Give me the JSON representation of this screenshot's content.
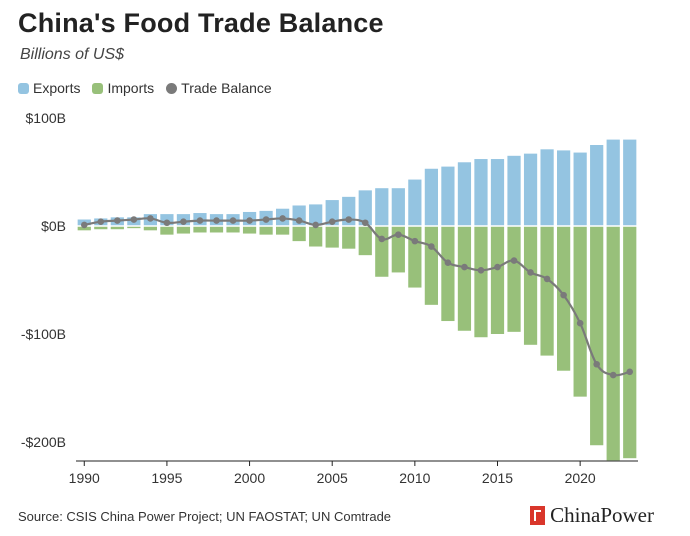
{
  "header": {
    "title": "China's Food Trade Balance",
    "subtitle": "Billions of US$"
  },
  "legend": [
    {
      "label": "Exports",
      "color": "#94c4e1"
    },
    {
      "label": "Imports",
      "color": "#98c07a"
    },
    {
      "label": "Trade Balance",
      "color": "#7a7a7a"
    }
  ],
  "footer": {
    "source": "Source: CSIS China Power Project; UN FAOSTAT; UN Comtrade",
    "brand": "ChinaPower",
    "brand_icon": "chinapower-logo-icon"
  },
  "chart_data": {
    "type": "bar",
    "title": "China's Food Trade Balance",
    "subtitle": "Billions of US$",
    "xlabel": "",
    "ylabel": "",
    "ylim": [
      -220,
      100
    ],
    "yticks": [
      100,
      0,
      -100,
      -200
    ],
    "ytick_labels": [
      "$100B",
      "$0B",
      "-$100B",
      "-$200B"
    ],
    "xticks": [
      1990,
      1995,
      2000,
      2005,
      2010,
      2015,
      2020
    ],
    "grid": false,
    "legend_position": "top-left",
    "x": [
      1990,
      1991,
      1992,
      1993,
      1994,
      1995,
      1996,
      1997,
      1998,
      1999,
      2000,
      2001,
      2002,
      2003,
      2004,
      2005,
      2006,
      2007,
      2008,
      2009,
      2010,
      2011,
      2012,
      2013,
      2014,
      2015,
      2016,
      2017,
      2018,
      2019,
      2020,
      2021,
      2022,
      2023
    ],
    "series": [
      {
        "name": "Exports",
        "kind": "bar",
        "color": "#94c4e1",
        "values": [
          6,
          7,
          8,
          8,
          11,
          11,
          11,
          12,
          11,
          11,
          13,
          14,
          16,
          19,
          20,
          24,
          27,
          33,
          35,
          35,
          43,
          53,
          55,
          59,
          62,
          62,
          65,
          67,
          71,
          70,
          68,
          75,
          80,
          80
        ]
      },
      {
        "name": "Imports",
        "kind": "bar",
        "color": "#98c07a",
        "values": [
          -4,
          -3,
          -3,
          -2,
          -4,
          -8,
          -7,
          -6,
          -6,
          -6,
          -7,
          -8,
          -8,
          -14,
          -19,
          -20,
          -21,
          -27,
          -47,
          -43,
          -57,
          -73,
          -88,
          -97,
          -103,
          -100,
          -98,
          -110,
          -120,
          -134,
          -158,
          -203,
          -217,
          -215
        ]
      },
      {
        "name": "Trade Balance",
        "kind": "line",
        "color": "#7a7a7a",
        "values": [
          1,
          4,
          5,
          6,
          7,
          3,
          4,
          5,
          5,
          5,
          5,
          6,
          7,
          5,
          1,
          4,
          6,
          3,
          -12,
          -8,
          -14,
          -19,
          -34,
          -38,
          -41,
          -38,
          -32,
          -43,
          -49,
          -64,
          -90,
          -128,
          -138,
          -135
        ]
      }
    ]
  }
}
